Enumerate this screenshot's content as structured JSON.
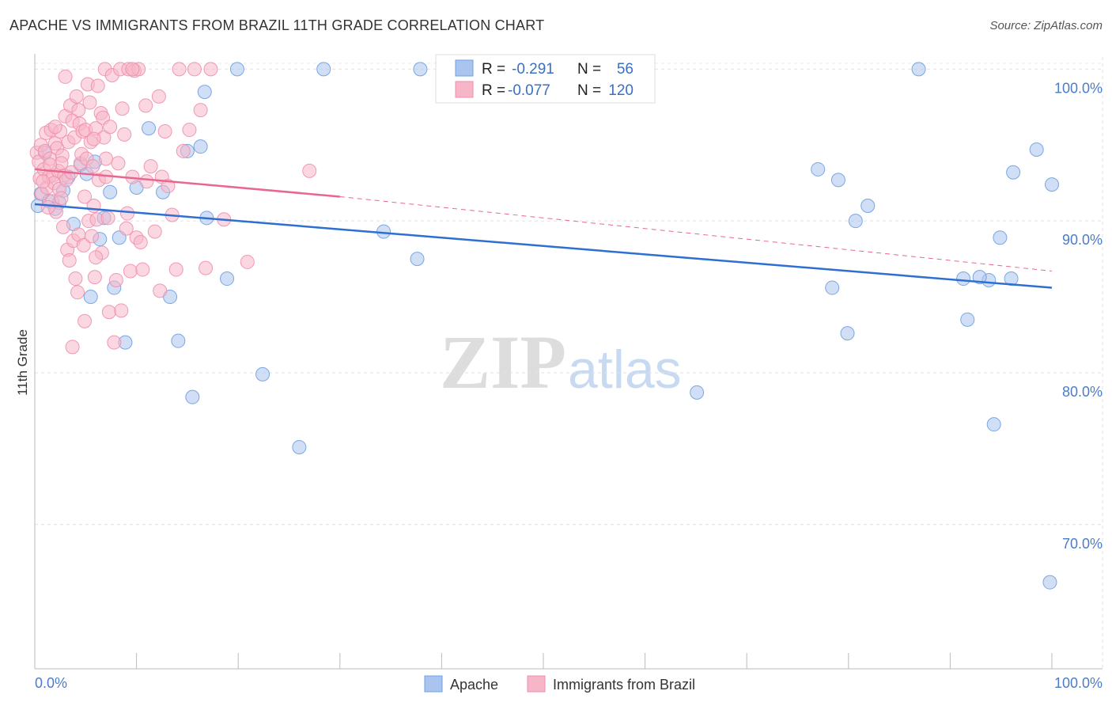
{
  "title": "APACHE VS IMMIGRANTS FROM BRAZIL 11TH GRADE CORRELATION CHART",
  "source": "Source: ZipAtlas.com",
  "watermark": {
    "zip": "ZIP",
    "atlas": "atlas"
  },
  "legend": {
    "rows": [
      {
        "r_label": "R =",
        "r_value": "-0.291",
        "n_label": "N =",
        "n_value": "56",
        "color": "#a9c4ef"
      },
      {
        "r_label": "R =",
        "r_value": "-0.077",
        "n_label": "N =",
        "n_value": "120",
        "color": "#f7b6c8"
      }
    ]
  },
  "bottom_legend": [
    {
      "label": "Apache",
      "color": "#a9c4ef"
    },
    {
      "label": "Immigrants from Brazil",
      "color": "#f7b6c8"
    }
  ],
  "chart_data": {
    "type": "scatter",
    "title": "APACHE VS IMMIGRANTS FROM BRAZIL 11TH GRADE CORRELATION CHART",
    "xlabel": "",
    "ylabel": "11th Grade",
    "xlim": [
      0,
      100
    ],
    "ylim": [
      60.5,
      100.8
    ],
    "x_tick_labels": [
      "0.0%",
      "100.0%"
    ],
    "y_ticks": [
      {
        "value": 100.0,
        "label": "100.0%"
      },
      {
        "value": 90.0,
        "label": "90.0%"
      },
      {
        "value": 80.0,
        "label": "80.0%"
      },
      {
        "value": 70.0,
        "label": "70.0%"
      }
    ],
    "series": [
      {
        "name": "Apache",
        "color": "#6f9fe0",
        "fill": "#a9c4ef",
        "trend": {
          "x0": 0,
          "y0": 91.1,
          "x1": 100,
          "y1": 85.6,
          "dashed_from": null
        },
        "points": [
          [
            0.3,
            91.0
          ],
          [
            0.6,
            91.8
          ],
          [
            1.4,
            91.3
          ],
          [
            2.4,
            91.2
          ],
          [
            2.8,
            92.0
          ],
          [
            3.3,
            92.9
          ],
          [
            3.8,
            89.8
          ],
          [
            4.5,
            93.7
          ],
          [
            5.1,
            93.1
          ],
          [
            5.5,
            85.0
          ],
          [
            5.9,
            93.9
          ],
          [
            6.4,
            88.8
          ],
          [
            6.8,
            90.2
          ],
          [
            7.4,
            91.9
          ],
          [
            7.8,
            85.6
          ],
          [
            8.3,
            88.9
          ],
          [
            8.9,
            82.0
          ],
          [
            10.0,
            92.2
          ],
          [
            11.2,
            96.1
          ],
          [
            12.6,
            91.9
          ],
          [
            13.3,
            85.0
          ],
          [
            14.1,
            82.1
          ],
          [
            15.0,
            94.6
          ],
          [
            15.5,
            78.4
          ],
          [
            16.3,
            94.9
          ],
          [
            16.7,
            98.5
          ],
          [
            16.9,
            90.2
          ],
          [
            18.9,
            86.2
          ],
          [
            19.9,
            100.0
          ],
          [
            22.4,
            79.9
          ],
          [
            26.0,
            75.1
          ],
          [
            28.4,
            100.0
          ],
          [
            34.3,
            89.3
          ],
          [
            37.6,
            87.5
          ],
          [
            37.9,
            100.0
          ],
          [
            65.1,
            78.7
          ],
          [
            77.0,
            93.4
          ],
          [
            78.4,
            85.6
          ],
          [
            79.0,
            92.7
          ],
          [
            79.9,
            82.6
          ],
          [
            80.7,
            90.0
          ],
          [
            81.9,
            91.0
          ],
          [
            86.9,
            100.0
          ],
          [
            91.3,
            86.2
          ],
          [
            91.7,
            83.5
          ],
          [
            93.8,
            86.1
          ],
          [
            94.3,
            76.6
          ],
          [
            94.9,
            88.9
          ],
          [
            96.0,
            86.2
          ],
          [
            96.2,
            93.2
          ],
          [
            98.5,
            94.7
          ],
          [
            99.8,
            66.2
          ],
          [
            100.0,
            92.4
          ],
          [
            1.0,
            94.5
          ],
          [
            92.9,
            86.3
          ],
          [
            2.0,
            90.8
          ]
        ]
      },
      {
        "name": "Immigrants from Brazil",
        "color": "#ef8fad",
        "fill": "#f7b6c8",
        "trend": {
          "x0": 0,
          "y0": 93.4,
          "x1": 30,
          "y1": 91.6,
          "dashed_to": 100,
          "dashed_y": 86.7
        },
        "points": [
          [
            0.2,
            94.5
          ],
          [
            0.4,
            93.9
          ],
          [
            0.5,
            92.8
          ],
          [
            0.6,
            95.0
          ],
          [
            0.7,
            91.8
          ],
          [
            0.9,
            93.4
          ],
          [
            1.0,
            94.6
          ],
          [
            1.1,
            95.8
          ],
          [
            1.2,
            92.2
          ],
          [
            1.4,
            92.9
          ],
          [
            1.5,
            94.1
          ],
          [
            1.6,
            96.0
          ],
          [
            1.7,
            91.3
          ],
          [
            1.8,
            93.0
          ],
          [
            1.9,
            92.5
          ],
          [
            2.0,
            95.1
          ],
          [
            2.1,
            90.6
          ],
          [
            2.2,
            94.8
          ],
          [
            2.3,
            93.3
          ],
          [
            2.4,
            92.1
          ],
          [
            2.5,
            95.9
          ],
          [
            2.6,
            91.5
          ],
          [
            2.7,
            94.3
          ],
          [
            2.8,
            89.6
          ],
          [
            2.9,
            93.0
          ],
          [
            3.0,
            96.9
          ],
          [
            3.1,
            92.7
          ],
          [
            3.2,
            88.1
          ],
          [
            3.3,
            95.2
          ],
          [
            3.4,
            87.4
          ],
          [
            3.5,
            97.6
          ],
          [
            3.6,
            93.2
          ],
          [
            3.7,
            96.6
          ],
          [
            3.8,
            88.7
          ],
          [
            3.9,
            95.5
          ],
          [
            4.0,
            86.2
          ],
          [
            4.1,
            98.2
          ],
          [
            4.2,
            85.3
          ],
          [
            4.3,
            89.1
          ],
          [
            4.4,
            96.4
          ],
          [
            4.5,
            93.8
          ],
          [
            4.6,
            94.4
          ],
          [
            4.7,
            95.9
          ],
          [
            4.8,
            88.4
          ],
          [
            4.9,
            83.4
          ],
          [
            5.0,
            96.0
          ],
          [
            5.1,
            94.1
          ],
          [
            5.2,
            99.0
          ],
          [
            5.3,
            90.0
          ],
          [
            5.4,
            97.8
          ],
          [
            5.5,
            95.2
          ],
          [
            5.6,
            89.0
          ],
          [
            5.7,
            93.6
          ],
          [
            5.8,
            91.0
          ],
          [
            5.9,
            86.3
          ],
          [
            6.0,
            96.1
          ],
          [
            6.1,
            90.1
          ],
          [
            6.2,
            98.9
          ],
          [
            6.3,
            92.7
          ],
          [
            6.5,
            97.1
          ],
          [
            6.6,
            87.9
          ],
          [
            6.7,
            96.8
          ],
          [
            6.8,
            95.5
          ],
          [
            6.9,
            100.0
          ],
          [
            7.0,
            94.1
          ],
          [
            7.2,
            90.2
          ],
          [
            7.4,
            96.2
          ],
          [
            7.6,
            99.6
          ],
          [
            7.8,
            82.0
          ],
          [
            8.0,
            86.1
          ],
          [
            8.2,
            93.8
          ],
          [
            8.4,
            100.0
          ],
          [
            8.6,
            97.4
          ],
          [
            8.8,
            95.7
          ],
          [
            9.0,
            89.5
          ],
          [
            9.2,
            100.0
          ],
          [
            9.4,
            86.7
          ],
          [
            9.6,
            92.9
          ],
          [
            9.8,
            99.9
          ],
          [
            10.0,
            88.9
          ],
          [
            10.2,
            100.0
          ],
          [
            10.4,
            88.6
          ],
          [
            10.6,
            86.8
          ],
          [
            11.0,
            92.6
          ],
          [
            11.4,
            93.6
          ],
          [
            11.8,
            89.3
          ],
          [
            12.2,
            98.2
          ],
          [
            12.5,
            92.9
          ],
          [
            12.8,
            95.9
          ],
          [
            13.1,
            92.3
          ],
          [
            13.5,
            90.4
          ],
          [
            13.9,
            86.8
          ],
          [
            14.2,
            100.0
          ],
          [
            14.6,
            94.6
          ],
          [
            15.2,
            96.0
          ],
          [
            15.7,
            100.0
          ],
          [
            16.3,
            97.3
          ],
          [
            16.8,
            86.9
          ],
          [
            17.3,
            100.0
          ],
          [
            18.6,
            90.1
          ],
          [
            20.9,
            87.3
          ],
          [
            27.0,
            93.3
          ],
          [
            0.8,
            92.6
          ],
          [
            1.3,
            90.9
          ],
          [
            2.6,
            93.8
          ],
          [
            3.7,
            81.7
          ],
          [
            4.9,
            91.6
          ],
          [
            6.0,
            87.6
          ],
          [
            7.3,
            84.0
          ],
          [
            8.5,
            84.1
          ],
          [
            9.1,
            90.5
          ],
          [
            10.9,
            97.6
          ],
          [
            12.3,
            85.4
          ],
          [
            3.0,
            99.5
          ],
          [
            4.3,
            97.3
          ],
          [
            1.5,
            93.7
          ],
          [
            2.0,
            96.2
          ],
          [
            5.8,
            95.4
          ],
          [
            7.0,
            92.9
          ],
          [
            9.6,
            100.0
          ]
        ]
      }
    ]
  }
}
